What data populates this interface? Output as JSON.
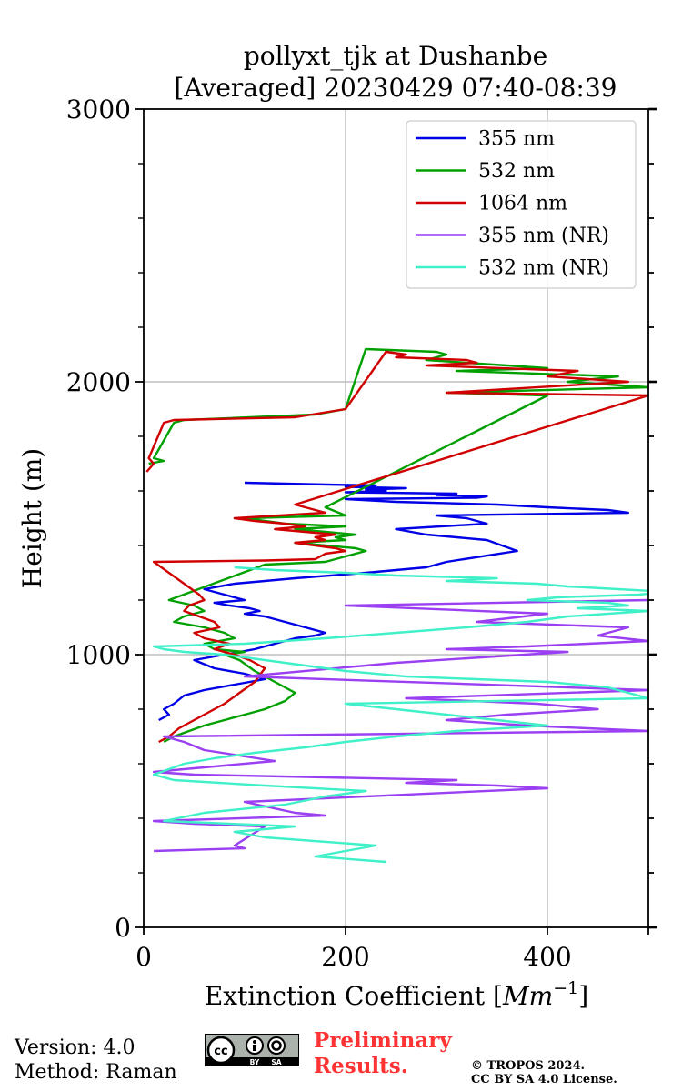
{
  "chart_data": {
    "type": "line",
    "title": [
      "pollyxt_tjk at Dushanbe",
      "[Averaged] 20230429 07:40-08:39"
    ],
    "xlabel": "Extinction Coefficient [",
    "xlabel_unit": "Mm",
    "xlabel_exp": "−1",
    "xlabel_close": "]",
    "ylabel": "Height (m)",
    "xlim": [
      0,
      500
    ],
    "ylim": [
      0,
      3000
    ],
    "xticks": [
      0,
      200,
      400
    ],
    "yticks": [
      0,
      1000,
      2000,
      3000
    ],
    "grid": true,
    "legend_position": "top-right",
    "series": [
      {
        "name": "355 nm",
        "color": "#0000e6",
        "x": [
          15,
          25,
          20,
          30,
          40,
          60,
          90,
          120,
          100,
          70,
          50,
          80,
          110,
          130,
          150,
          170,
          180,
          160,
          140,
          120,
          100,
          115,
          105,
          85,
          70,
          100,
          80,
          60,
          90,
          150,
          220,
          280,
          300,
          370,
          340,
          280,
          250,
          340,
          320,
          290,
          480,
          460,
          400,
          350,
          250,
          200,
          330,
          340,
          290,
          310,
          200,
          240,
          220,
          260,
          200,
          230,
          160,
          100
        ],
        "y": [
          760,
          780,
          800,
          820,
          850,
          870,
          890,
          910,
          930,
          950,
          980,
          1000,
          1020,
          1040,
          1060,
          1070,
          1080,
          1100,
          1120,
          1140,
          1150,
          1160,
          1170,
          1180,
          1190,
          1200,
          1220,
          1240,
          1260,
          1280,
          1300,
          1320,
          1340,
          1380,
          1420,
          1440,
          1460,
          1480,
          1500,
          1510,
          1520,
          1530,
          1540,
          1550,
          1560,
          1570,
          1575,
          1580,
          1585,
          1590,
          1595,
          1600,
          1605,
          1610,
          1615,
          1620,
          1625,
          1630
        ]
      },
      {
        "name": "532 nm",
        "color": "#00a000",
        "x": [
          20,
          30,
          45,
          60,
          80,
          100,
          120,
          140,
          150,
          130,
          110,
          95,
          80,
          100,
          70,
          60,
          90,
          80,
          60,
          30,
          40,
          60,
          50,
          25,
          120,
          180,
          200,
          220,
          210,
          180,
          150,
          200,
          190,
          210,
          180,
          150,
          200,
          140,
          120,
          100,
          200,
          180,
          400,
          300,
          500,
          420,
          470,
          310,
          400,
          360,
          280,
          300,
          290,
          220,
          200,
          170,
          40,
          30,
          10,
          20,
          5
        ],
        "y": [
          680,
          700,
          720,
          740,
          760,
          780,
          800,
          830,
          860,
          900,
          940,
          980,
          1000,
          1010,
          1020,
          1040,
          1060,
          1080,
          1100,
          1120,
          1140,
          1160,
          1180,
          1200,
          1330,
          1340,
          1360,
          1380,
          1390,
          1400,
          1410,
          1420,
          1430,
          1440,
          1450,
          1460,
          1470,
          1480,
          1490,
          1500,
          1510,
          1540,
          1950,
          1960,
          1980,
          2000,
          2020,
          2040,
          2050,
          2060,
          2080,
          2100,
          2110,
          2120,
          1900,
          1880,
          1860,
          1850,
          1720,
          1710,
          1700
        ]
      },
      {
        "name": "1064 nm",
        "color": "#d00000",
        "x": [
          15,
          25,
          35,
          50,
          65,
          80,
          95,
          110,
          120,
          105,
          90,
          70,
          85,
          60,
          50,
          75,
          70,
          55,
          40,
          45,
          60,
          55,
          10,
          120,
          170,
          180,
          200,
          190,
          170,
          150,
          180,
          170,
          190,
          160,
          130,
          160,
          140,
          110,
          90,
          180,
          150,
          500,
          300,
          480,
          400,
          430,
          280,
          330,
          320,
          250,
          260,
          240,
          200,
          150,
          30,
          20,
          5,
          10,
          3
        ],
        "y": [
          680,
          700,
          730,
          760,
          790,
          820,
          860,
          900,
          950,
          980,
          1000,
          1020,
          1040,
          1060,
          1080,
          1100,
          1120,
          1140,
          1160,
          1180,
          1200,
          1220,
          1340,
          1345,
          1350,
          1370,
          1380,
          1390,
          1400,
          1410,
          1420,
          1430,
          1440,
          1450,
          1460,
          1470,
          1480,
          1490,
          1500,
          1520,
          1550,
          1950,
          1960,
          2000,
          2020,
          2040,
          2060,
          2070,
          2080,
          2090,
          2100,
          2110,
          1900,
          1870,
          1860,
          1850,
          1720,
          1700,
          1670
        ]
      },
      {
        "name": "355 nm (NR)",
        "color": "#9a3ff2",
        "x": [
          10,
          100,
          90,
          120,
          50,
          10,
          180,
          150,
          100,
          400,
          350,
          260,
          310,
          50,
          10,
          130,
          60,
          40,
          20,
          500,
          380,
          300,
          360,
          450,
          390,
          260,
          500,
          100,
          250,
          420,
          300,
          380,
          500,
          450,
          480,
          330,
          400,
          200,
          500
        ],
        "y": [
          280,
          290,
          300,
          370,
          380,
          390,
          410,
          420,
          460,
          510,
          520,
          530,
          540,
          560,
          570,
          610,
          650,
          680,
          700,
          720,
          740,
          760,
          780,
          800,
          820,
          840,
          870,
          920,
          970,
          1010,
          1020,
          1030,
          1050,
          1070,
          1100,
          1120,
          1150,
          1180,
          1200
        ]
      },
      {
        "name": "532 nm (NR)",
        "color": "#40f0c8",
        "x": [
          240,
          170,
          200,
          230,
          120,
          90,
          150,
          20,
          60,
          140,
          180,
          220,
          120,
          30,
          10,
          40,
          70,
          110,
          160,
          200,
          250,
          310,
          400,
          350,
          300,
          250,
          200,
          500,
          480,
          460,
          400,
          260,
          200,
          160,
          120,
          80,
          40,
          20,
          10,
          100,
          180,
          250,
          320,
          380,
          420,
          500,
          430,
          480,
          460,
          380,
          410,
          490,
          520,
          470,
          420,
          390,
          300,
          350,
          250,
          200,
          130,
          90
        ],
        "y": [
          240,
          260,
          280,
          300,
          330,
          350,
          370,
          390,
          420,
          450,
          480,
          500,
          520,
          540,
          560,
          600,
          620,
          640,
          660,
          680,
          700,
          720,
          740,
          760,
          780,
          800,
          820,
          840,
          860,
          880,
          900,
          920,
          940,
          960,
          980,
          1000,
          1010,
          1020,
          1030,
          1040,
          1060,
          1080,
          1100,
          1120,
          1140,
          1160,
          1170,
          1180,
          1190,
          1200,
          1210,
          1220,
          1230,
          1240,
          1250,
          1260,
          1270,
          1280,
          1290,
          1300,
          1310,
          1320
        ]
      }
    ]
  },
  "footer": {
    "version": "Version: 4.0",
    "method": "Method: Raman",
    "preliminary": [
      "Preliminary",
      "Results."
    ],
    "copyright": [
      "© TROPOS 2024.",
      "CC BY SA 4.0 License."
    ],
    "license_badge": [
      "BY",
      "SA"
    ]
  }
}
